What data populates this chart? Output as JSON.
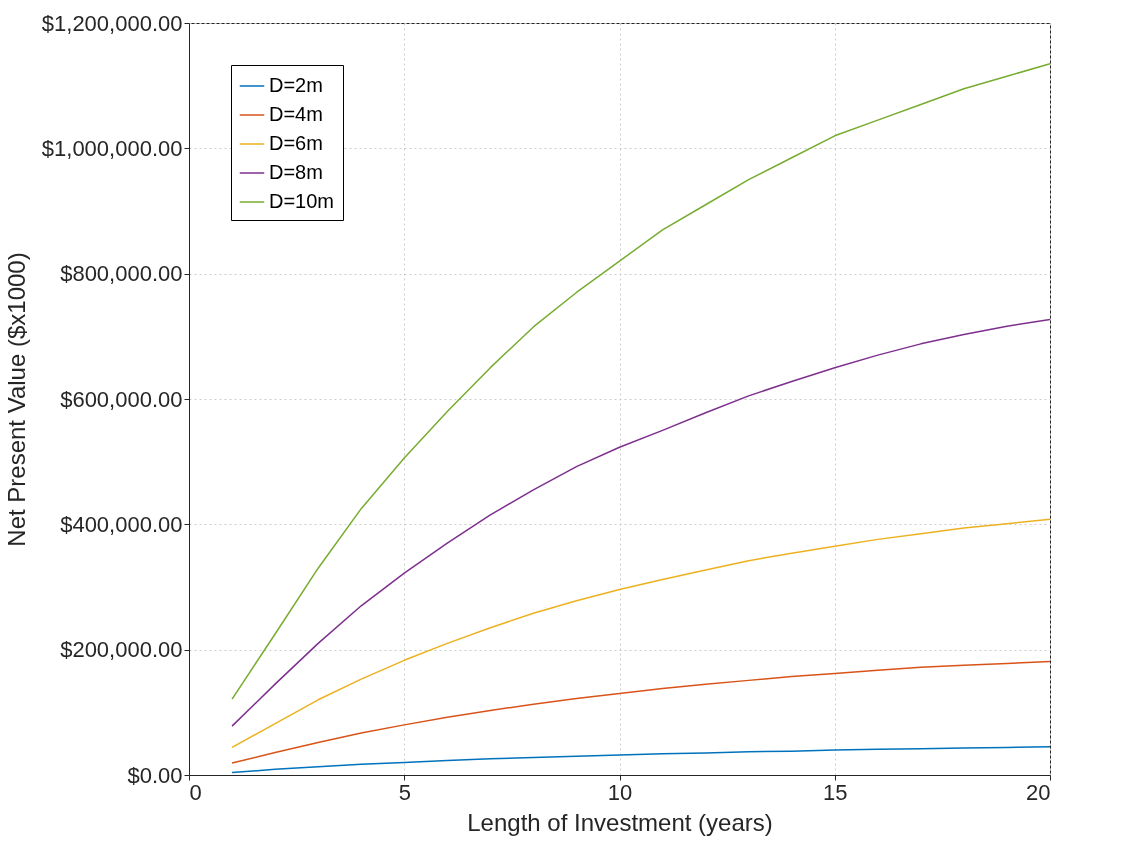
{
  "chart_data": {
    "type": "line",
    "xlabel": "Length of Investment (years)",
    "ylabel": "Net Present Value ($x1000)",
    "x": [
      1,
      2,
      3,
      4,
      5,
      6,
      7,
      8,
      9,
      10,
      11,
      12,
      13,
      14,
      15,
      16,
      17,
      18,
      19,
      20
    ],
    "series": [
      {
        "name": "D=2m",
        "color": "#0072bd",
        "values": [
          4000,
          9000,
          13000,
          17000,
          20000,
          23000,
          26000,
          28000,
          30000,
          32000,
          34000,
          35000,
          37000,
          38000,
          40000,
          41000,
          42000,
          43000,
          44000,
          45000
        ]
      },
      {
        "name": "D=4m",
        "color": "#d95319",
        "values": [
          19000,
          36000,
          52000,
          67000,
          80000,
          92000,
          103000,
          113000,
          122000,
          130000,
          138000,
          145000,
          151000,
          157000,
          162000,
          167000,
          172000,
          175000,
          178000,
          181000
        ]
      },
      {
        "name": "D=6m",
        "color": "#edb120",
        "values": [
          44000,
          82000,
          120000,
          153000,
          183000,
          210000,
          235000,
          258000,
          278000,
          296000,
          312000,
          327000,
          342000,
          354000,
          365000,
          376000,
          385000,
          394000,
          401000,
          408000
        ]
      },
      {
        "name": "D=8m",
        "color": "#7e2f8e",
        "values": [
          78000,
          145000,
          210000,
          270000,
          322000,
          370000,
          415000,
          455000,
          492000,
          523000,
          550000,
          578000,
          605000,
          628000,
          650000,
          670000,
          688000,
          703000,
          716000,
          727000
        ]
      },
      {
        "name": "D=10m",
        "color": "#77ac30",
        "values": [
          121000,
          225000,
          330000,
          425000,
          506000,
          580000,
          650000,
          715000,
          770000,
          820000,
          870000,
          910000,
          950000,
          985000,
          1020000,
          1045000,
          1070000,
          1095000,
          1115000,
          1135000
        ]
      }
    ],
    "xlim": [
      0,
      20
    ],
    "xticks": [
      0,
      5,
      10,
      15,
      20
    ],
    "ylim": [
      0,
      1200000
    ],
    "yticks": [
      {
        "value": 0,
        "label": "$0.00"
      },
      {
        "value": 200000,
        "label": "$200,000.00"
      },
      {
        "value": 400000,
        "label": "$400,000.00"
      },
      {
        "value": 600000,
        "label": "$600,000.00"
      },
      {
        "value": 800000,
        "label": "$800,000.00"
      },
      {
        "value": 1000000,
        "label": "$1,000,000.00"
      },
      {
        "value": 1200000,
        "label": "$1,200,000.00"
      }
    ],
    "grid": true,
    "legend": "top left",
    "marker": "none"
  }
}
